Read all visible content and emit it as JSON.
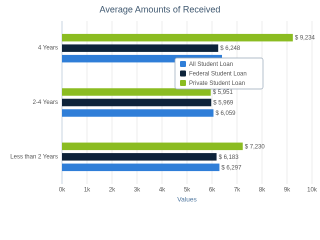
{
  "chart_data": {
    "type": "bar",
    "title": "Average Amounts of Received",
    "categories": [
      "4 Years",
      "2-4 Years",
      "Less than 2 Years"
    ],
    "series": [
      {
        "name": "All Student Loan",
        "color": "#2f7ed8",
        "values": [
          6400,
          6059,
          6297
        ],
        "value_labels": [
          null,
          "$ 6,059",
          "$ 6,297"
        ]
      },
      {
        "name": "Federal Student Loan",
        "color": "#0d233a",
        "values": [
          6248,
          5969,
          6183
        ],
        "value_labels": [
          "$ 6,248",
          "$ 5,969",
          "$ 6,183"
        ]
      },
      {
        "name": "Private Student Loan",
        "color": "#8bbc21",
        "values": [
          9234,
          5951,
          7230
        ],
        "value_labels": [
          "$ 9,234",
          "$ 5,951",
          "$ 7,230"
        ]
      }
    ],
    "xlabel": "Values",
    "xlim": [
      0,
      10000
    ],
    "xticks": [
      {
        "value": 0,
        "label": "0k"
      },
      {
        "value": 1000,
        "label": "1k"
      },
      {
        "value": 2000,
        "label": "2k"
      },
      {
        "value": 3000,
        "label": "3k"
      },
      {
        "value": 4000,
        "label": "4k"
      },
      {
        "value": 5000,
        "label": "5k"
      },
      {
        "value": 6000,
        "label": "6k"
      },
      {
        "value": 7000,
        "label": "7k"
      },
      {
        "value": 8000,
        "label": "8k"
      },
      {
        "value": 9000,
        "label": "9k"
      },
      {
        "value": 10000,
        "label": "10k"
      }
    ],
    "grid": true,
    "legend_position": "center"
  }
}
